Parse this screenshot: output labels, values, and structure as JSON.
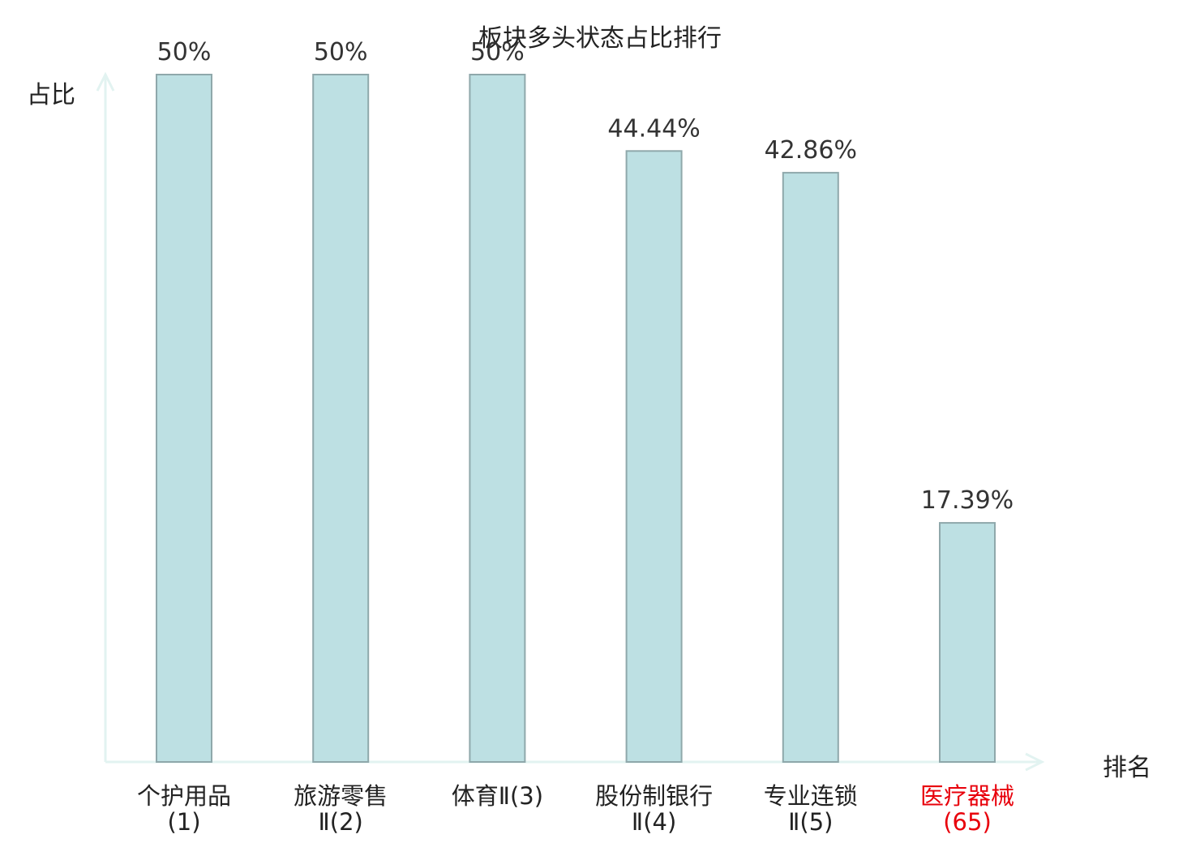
{
  "chart_data": {
    "type": "bar",
    "title": "板块多头状态占比排行",
    "ylabel": "占比",
    "xlabel": "排名",
    "categories": [
      {
        "name": "个护用品",
        "rank": "(1)",
        "color": "#222222"
      },
      {
        "name": "旅游零售Ⅱ",
        "rank": "(2)",
        "color": "#222222"
      },
      {
        "name": "体育Ⅱ",
        "rank": "(3)",
        "color": "#222222"
      },
      {
        "name": "股份制银行Ⅱ",
        "rank": "(4)",
        "color": "#222222"
      },
      {
        "name": "专业连锁Ⅱ",
        "rank": "(5)",
        "color": "#222222"
      },
      {
        "name": "医疗器械",
        "rank": "(65)",
        "color": "#e8000b"
      }
    ],
    "values": [
      50,
      50,
      50,
      44.44,
      42.86,
      17.39
    ],
    "value_labels": [
      "50%",
      "50%",
      "50%",
      "44.44%",
      "42.86%",
      "17.39%"
    ],
    "ylim": [
      0,
      50
    ],
    "bar_color": "#bde0e3",
    "bar_edge_color": "#8fa8ab",
    "axis_color": "#e2f3f1",
    "grid": false
  }
}
